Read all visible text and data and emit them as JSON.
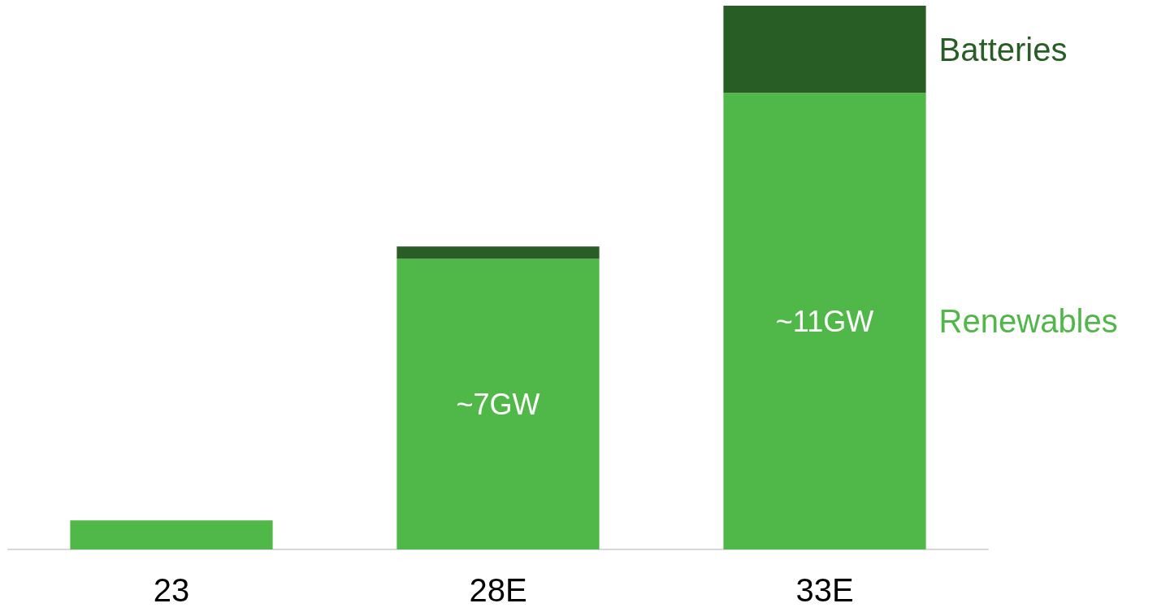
{
  "chart_data": {
    "type": "bar",
    "stacked": true,
    "categories": [
      "23",
      "28E",
      "33E"
    ],
    "series": [
      {
        "name": "Renewables",
        "color": "#50b848",
        "values": [
          0.7,
          7,
          11
        ],
        "value_labels": [
          null,
          "~7GW",
          "~11GW"
        ]
      },
      {
        "name": "Batteries",
        "color": "#285e25",
        "values": [
          null,
          0.3,
          2.1
        ]
      }
    ],
    "legend": false
  }
}
